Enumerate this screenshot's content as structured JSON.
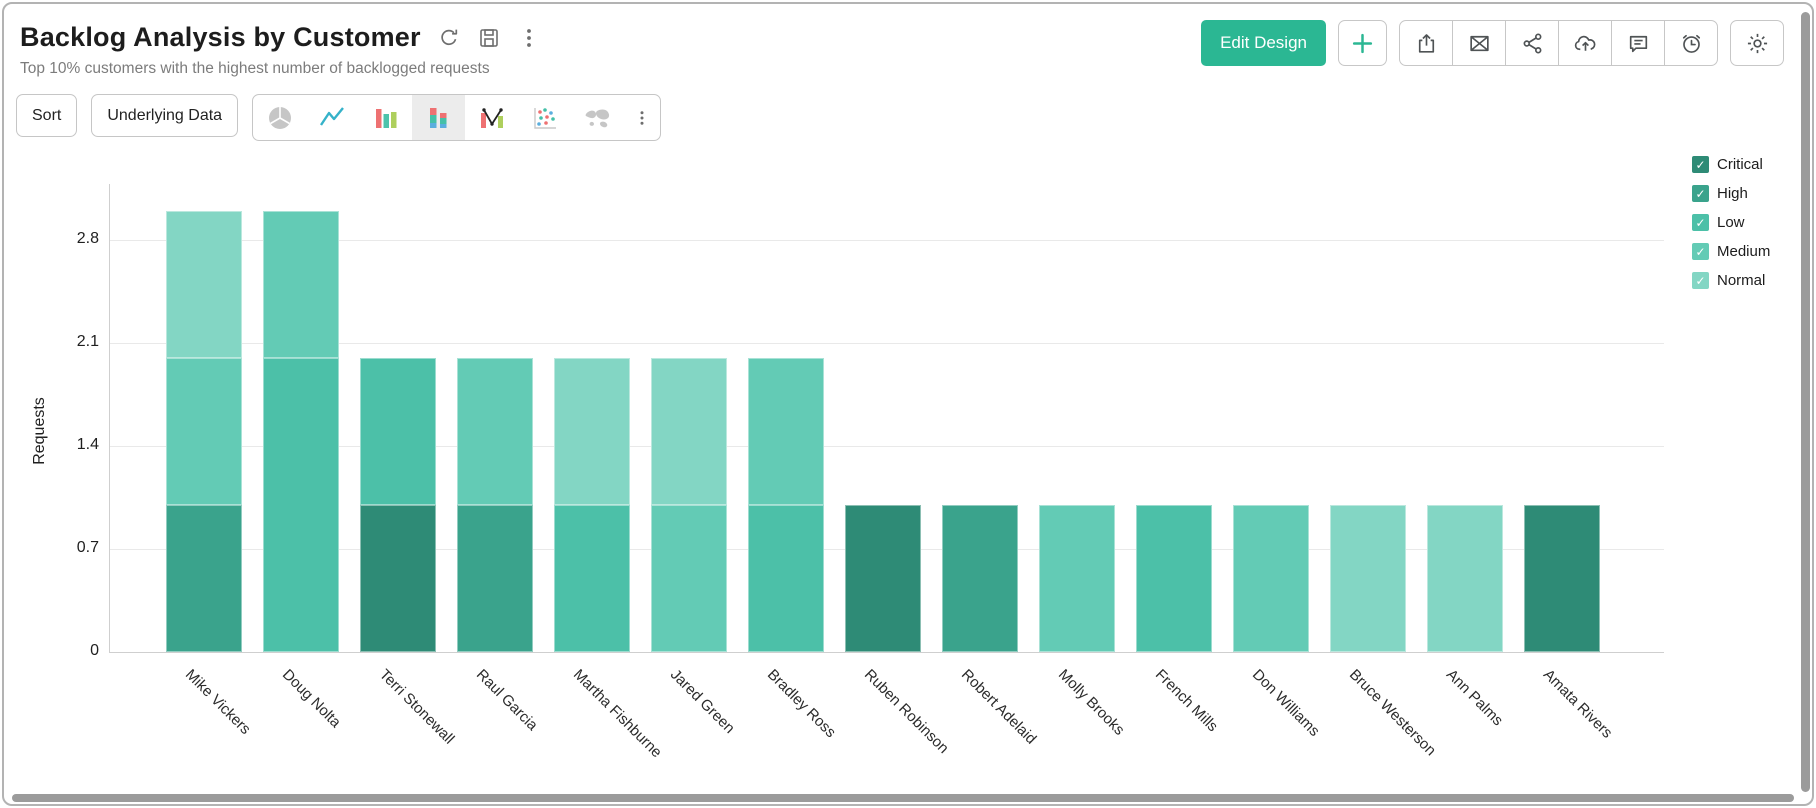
{
  "header": {
    "title": "Backlog Analysis by Customer",
    "subtitle": "Top 10% customers with the highest number of backlogged requests",
    "title_icons": [
      "refresh-icon",
      "save-icon",
      "more-vertical-icon"
    ],
    "edit_design_label": "Edit Design",
    "action_icons": [
      "plus-icon",
      "export-icon",
      "email-icon",
      "share-icon",
      "cloud-upload-icon",
      "comment-icon",
      "history-icon",
      "settings-icon"
    ]
  },
  "toolbar": {
    "sort_label": "Sort",
    "underlying_data_label": "Underlying Data",
    "chart_type_options": [
      "pie",
      "line",
      "bar",
      "stacked-bar",
      "combo",
      "scatter",
      "map"
    ],
    "selected_chart_type": "stacked-bar"
  },
  "legend": {
    "position": "right",
    "items": [
      {
        "label": "Critical",
        "color": "#2E8B76",
        "checked": true
      },
      {
        "label": "High",
        "color": "#3AA38C",
        "checked": true
      },
      {
        "label": "Low",
        "color": "#4CC0A8",
        "checked": true
      },
      {
        "label": "Medium",
        "color": "#63CBB5",
        "checked": true
      },
      {
        "label": "Normal",
        "color": "#83D6C4",
        "checked": true
      }
    ]
  },
  "chart_data": {
    "type": "bar",
    "stacked": true,
    "title": "",
    "xlabel": "",
    "ylabel": "Requests",
    "ylim": [
      0,
      3.05
    ],
    "yticks": [
      0,
      0.7,
      1.4,
      2.1,
      2.8
    ],
    "grid": true,
    "legend_position": "right",
    "categories": [
      "Mike Vickers",
      "Doug Nolta",
      "Terri Stonewall",
      "Raul Garcia",
      "Martha Fishburne",
      "Jared Green",
      "Bradley Ross",
      "Ruben Robinson",
      "Robert Adelaid",
      "Molly Brooks",
      "French Mills",
      "Don Williams",
      "Bruce Westerson",
      "Ann Palms",
      "Amata Rivers"
    ],
    "series": [
      {
        "name": "Critical",
        "color": "#2E8B76",
        "values": [
          0,
          0,
          1,
          0,
          0,
          0,
          0,
          1,
          0,
          0,
          0,
          0,
          0,
          0,
          1
        ]
      },
      {
        "name": "High",
        "color": "#3AA38C",
        "values": [
          1,
          0,
          0,
          1,
          0,
          0,
          0,
          0,
          1,
          0,
          0,
          0,
          0,
          0,
          0
        ]
      },
      {
        "name": "Low",
        "color": "#4CC0A8",
        "values": [
          0,
          2,
          1,
          0,
          1,
          0,
          1,
          0,
          0,
          0,
          1,
          0,
          0,
          0,
          0
        ]
      },
      {
        "name": "Medium",
        "color": "#63CBB5",
        "values": [
          1,
          1,
          0,
          1,
          0,
          1,
          1,
          0,
          0,
          1,
          0,
          1,
          0,
          0,
          0
        ]
      },
      {
        "name": "Normal",
        "color": "#83D6C4",
        "values": [
          1,
          0,
          0,
          0,
          1,
          1,
          0,
          0,
          0,
          0,
          0,
          0,
          1,
          1,
          0
        ]
      }
    ]
  }
}
